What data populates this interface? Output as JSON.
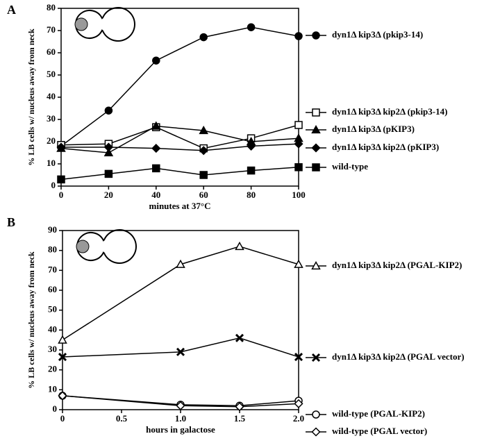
{
  "chart_data": [
    {
      "type": "line",
      "panel": "A",
      "xlabel": "minutes at 37°C",
      "ylabel": "% LB cells w/ nucleus away from neck",
      "x": [
        0,
        20,
        40,
        60,
        80,
        100
      ],
      "xlim": [
        0,
        100
      ],
      "xticks": [
        0,
        20,
        40,
        60,
        80,
        100
      ],
      "ylim": [
        0,
        80
      ],
      "yticks": [
        0,
        10,
        20,
        30,
        40,
        50,
        60,
        70,
        80
      ],
      "series": [
        {
          "name": "dyn1Δ kip3Δ (pkip3-14)",
          "color": "#000000",
          "marker": "circle",
          "filled": true,
          "values": [
            18,
            34,
            56.5,
            67,
            71.5,
            67.5
          ]
        },
        {
          "name": "dyn1Δ kip3Δ kip2Δ (pkip3-14)",
          "color": "#000000",
          "marker": "square",
          "filled": false,
          "values": [
            18.5,
            19,
            26.5,
            17,
            21.5,
            27.5
          ]
        },
        {
          "name": "dyn1Δ kip3Δ (pKIP3)",
          "color": "#000000",
          "marker": "triangle",
          "filled": true,
          "values": [
            17,
            15,
            27,
            25,
            20,
            21.5
          ]
        },
        {
          "name": "dyn1Δ kip3Δ kip2Δ (pKIP3)",
          "color": "#000000",
          "marker": "diamond",
          "filled": true,
          "values": [
            17.5,
            17.5,
            17,
            16,
            18,
            19
          ]
        },
        {
          "name": "wild-type",
          "color": "#000000",
          "marker": "square",
          "filled": true,
          "values": [
            3,
            5.5,
            8,
            5,
            7,
            8.5
          ]
        }
      ]
    },
    {
      "type": "line",
      "panel": "B",
      "xlabel": "hours in galactose",
      "ylabel": "% LB cells w/ nucleus away from neck",
      "x": [
        0,
        1,
        1.5,
        2
      ],
      "xlim": [
        0,
        2
      ],
      "xticks": [
        0,
        0.5,
        {
          "value": 1,
          "label": "1.0"
        },
        1.5,
        {
          "value": 2,
          "label": "2.0"
        }
      ],
      "ylim": [
        0,
        90
      ],
      "yticks": [
        0,
        10,
        20,
        30,
        40,
        50,
        60,
        70,
        80,
        90
      ],
      "series": [
        {
          "name": "dyn1Δ kip3Δ kip2Δ (PGAL-KIP2)",
          "color": "#000000",
          "marker": "triangle",
          "filled": false,
          "values": [
            35,
            73,
            82,
            73
          ]
        },
        {
          "name": "dyn1Δ kip3Δ kip2Δ (PGAL vector)",
          "color": "#000000",
          "marker": "x",
          "filled": true,
          "values": [
            26.5,
            29,
            36,
            26.5
          ]
        },
        {
          "name": "wild-type (PGAL-KIP2)",
          "color": "#000000",
          "marker": "circle",
          "filled": false,
          "values": [
            7,
            2.5,
            2,
            4.5
          ]
        },
        {
          "name": "wild-type (PGAL vector)",
          "color": "#000000",
          "marker": "diamond",
          "filled": false,
          "values": [
            7,
            2,
            1.5,
            3
          ]
        }
      ]
    }
  ]
}
